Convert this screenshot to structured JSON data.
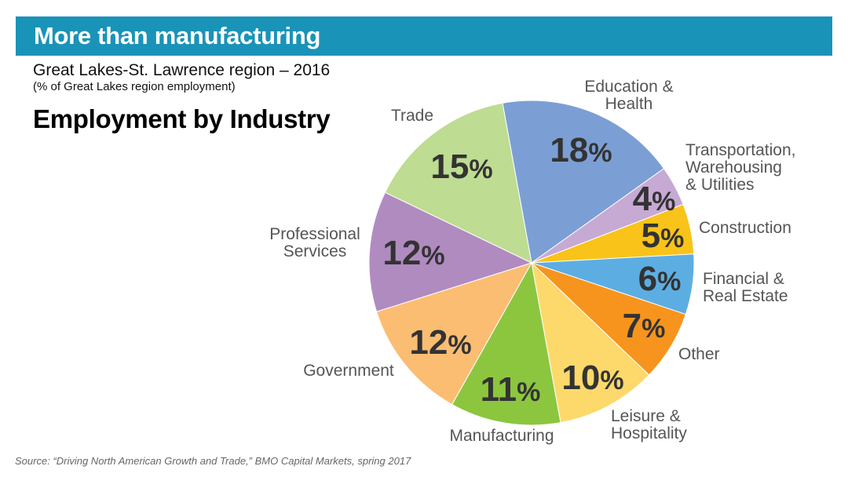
{
  "banner": {
    "title": "More than manufacturing",
    "color": "#1a93b8"
  },
  "subtitle": "Great Lakes-St. Lawrence region – 2016",
  "note": "(% of Great Lakes region employment)",
  "source": "Source: “Driving North American Growth and Trade,” BMO Capital Markets, spring 2017",
  "chart_data": {
    "type": "pie",
    "title": "Employment by Industry",
    "unit": "%",
    "slices": [
      {
        "label": [
          "Education &",
          "Health"
        ],
        "value": 18,
        "color": "#7b9fd4"
      },
      {
        "label": [
          "Transportation,",
          "Warehousing",
          "& Utilities"
        ],
        "value": 4,
        "color": "#c6aad4"
      },
      {
        "label": [
          "Construction"
        ],
        "value": 5,
        "color": "#f9c31a"
      },
      {
        "label": [
          "Financial &",
          "Real Estate"
        ],
        "value": 6,
        "color": "#5caee2"
      },
      {
        "label": [
          "Other"
        ],
        "value": 7,
        "color": "#f7941d"
      },
      {
        "label": [
          "Leisure &",
          "Hospitality"
        ],
        "value": 10,
        "color": "#fdd96b"
      },
      {
        "label": [
          "Manufacturing"
        ],
        "value": 11,
        "color": "#8cc63f"
      },
      {
        "label": [
          "Government"
        ],
        "value": 12,
        "color": "#fbbd72"
      },
      {
        "label": [
          "Professional",
          "Services"
        ],
        "value": 12,
        "color": "#b08bc0"
      },
      {
        "label": [
          "Trade"
        ],
        "value": 15,
        "color": "#bedc92"
      }
    ]
  }
}
